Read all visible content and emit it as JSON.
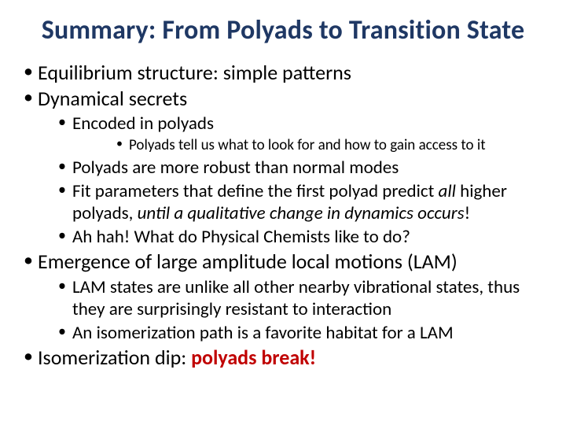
{
  "colors": {
    "title": "#1f3864",
    "body": "#000000",
    "accent_red": "#c00000",
    "background": "#ffffff"
  },
  "typography": {
    "title_fontsize": 34,
    "lvl1_fontsize": 26,
    "lvl2_fontsize": 23,
    "lvl3_fontsize": 19,
    "font_family": "Calibri"
  },
  "title": "Summary: From Polyads to Transition State",
  "bullets": {
    "b1": "Equilibrium structure: simple patterns",
    "b2": "Dynamical secrets",
    "b2_1": "Encoded in polyads",
    "b2_1_1": "Polyads tell us what to look for and how to gain access to it",
    "b2_2": "Polyads are more robust than normal modes",
    "b2_3_a": "Fit parameters that define the first polyad predict ",
    "b2_3_em1": "all",
    "b2_3_b": " higher polyads, ",
    "b2_3_em2": "until a qualitative change in dynamics occurs",
    "b2_3_c": "!",
    "b2_4": "Ah hah! What do Physical Chemists like to do?",
    "b3": "Emergence of large amplitude local motions (LAM)",
    "b3_1": "LAM states are unlike all other nearby vibrational states, thus they are surprisingly resistant to interaction",
    "b3_2": "An isomerization path is a favorite habitat for a LAM",
    "b4_a": "Isomerization dip: ",
    "b4_b": "polyads break!"
  }
}
